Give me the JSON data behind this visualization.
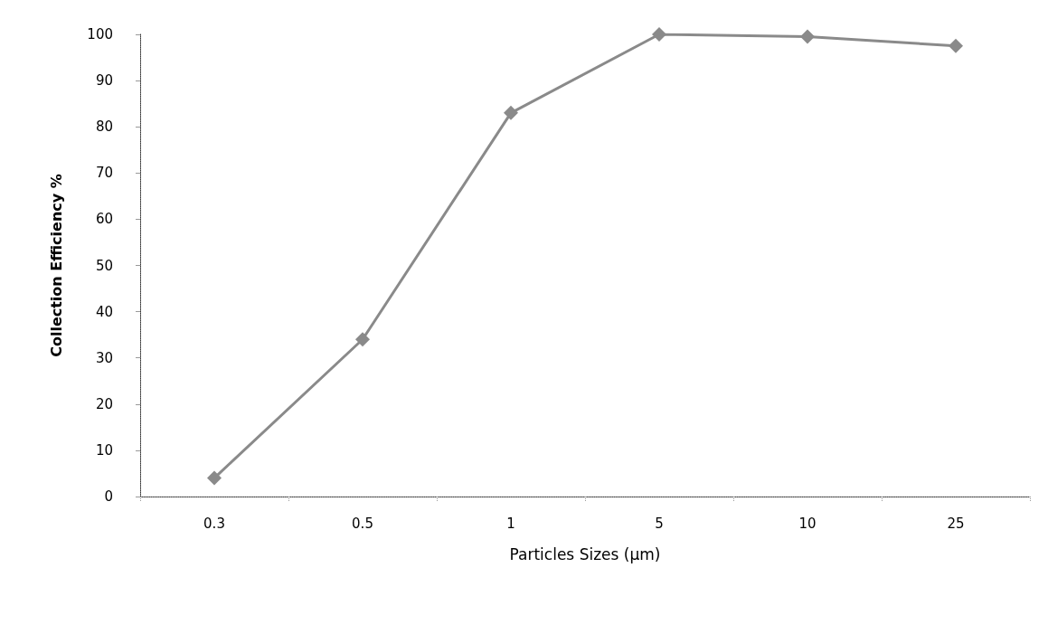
{
  "chart_data": {
    "type": "line",
    "xlabel": "Particles Sizes (µm)",
    "ylabel": "Collection Efficiency %",
    "categories": [
      "0.3",
      "0.5",
      "1",
      "5",
      "10",
      "25"
    ],
    "series": [
      {
        "color": "#8a8a8a",
        "values": [
          4,
          34,
          83,
          100,
          99.5,
          97.5
        ]
      }
    ],
    "ylim": [
      0,
      100
    ],
    "yticks": [
      0,
      10,
      20,
      30,
      40,
      50,
      60,
      70,
      80,
      90,
      100
    ],
    "grid": false,
    "marker": "diamond",
    "line_style": "solid"
  }
}
